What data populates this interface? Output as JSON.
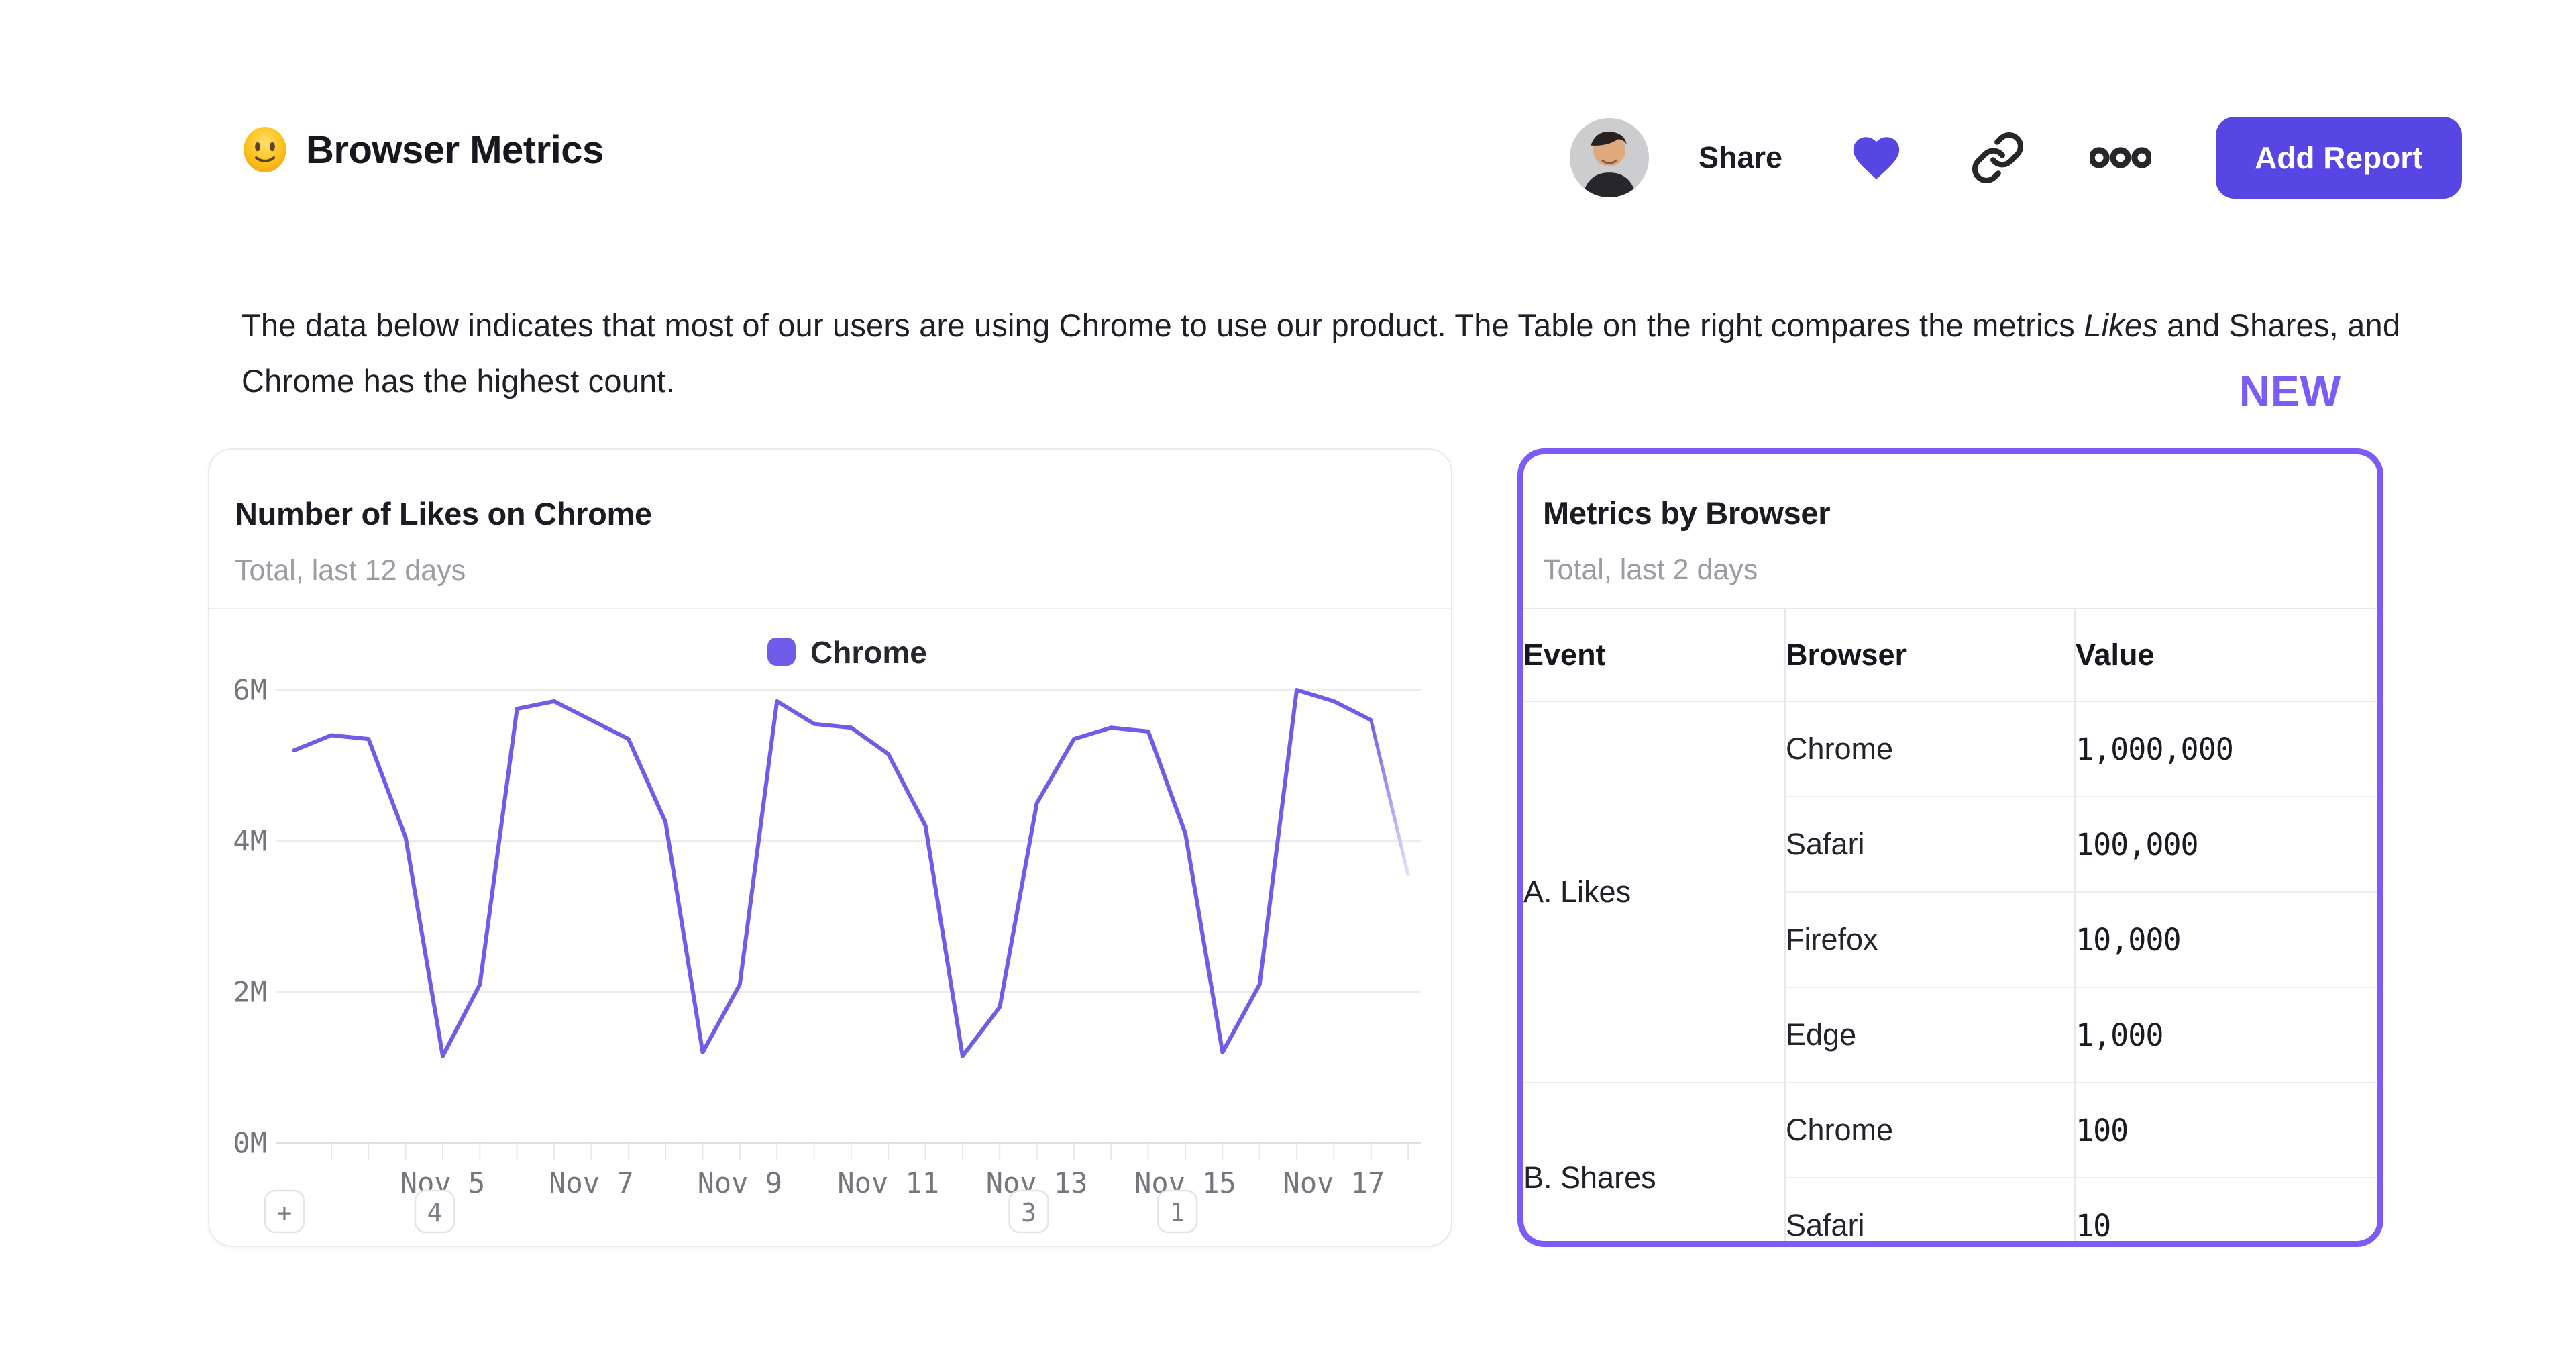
{
  "header": {
    "title": "Browser Metrics",
    "title_emoji": "slightly-smiling-face",
    "share_label": "Share",
    "add_report_label": "Add Report"
  },
  "description": {
    "part1": "The data below indicates that most of our users are using Chrome to use our product. The Table on the right compares the metrics ",
    "italic": "Likes",
    "part2": " and Shares, and Chrome has the highest count."
  },
  "new_badge": "NEW",
  "chart_card": {
    "title": "Number of Likes on Chrome",
    "subtitle": "Total, last 12 days",
    "annotations": [
      {
        "label": "+",
        "day": null
      },
      {
        "label": "4",
        "day": 5
      },
      {
        "label": "3",
        "day": 13
      },
      {
        "label": "1",
        "day": 15
      }
    ]
  },
  "chart_data": {
    "type": "line",
    "title": "Number of Likes on Chrome",
    "subtitle": "Total, last 12 days",
    "x_unit": "date (November, half-day resolution)",
    "ylim": [
      0,
      6
    ],
    "grid": true,
    "legend_position": "top-center",
    "y_ticks": [
      {
        "label": "0M",
        "value": 0
      },
      {
        "label": "2M",
        "value": 2
      },
      {
        "label": "4M",
        "value": 4
      },
      {
        "label": "6M",
        "value": 6
      }
    ],
    "x_ticks": [
      {
        "label": "Nov 5",
        "day": 5
      },
      {
        "label": "Nov 7",
        "day": 7
      },
      {
        "label": "Nov 9",
        "day": 9
      },
      {
        "label": "Nov 11",
        "day": 11
      },
      {
        "label": "Nov 13",
        "day": 13
      },
      {
        "label": "Nov 15",
        "day": 15
      },
      {
        "label": "Nov 17",
        "day": 17
      }
    ],
    "minor_tick_start_day": 3.5,
    "minor_tick_end_day": 18,
    "minor_tick_step": 0.5,
    "series": [
      {
        "name": "Chrome",
        "unit": "M likes",
        "fade_from_day": 17.5,
        "x": [
          3,
          3.5,
          4,
          4.5,
          5,
          5.5,
          6,
          6.5,
          7,
          7.5,
          8,
          8.5,
          9,
          9.5,
          10,
          10.5,
          11,
          11.5,
          12,
          12.5,
          13,
          13.5,
          14,
          14.5,
          15,
          15.5,
          16,
          16.5,
          17,
          17.5,
          18
        ],
        "values": [
          5.2,
          5.4,
          5.35,
          4.05,
          1.15,
          2.1,
          5.75,
          5.85,
          5.6,
          5.35,
          4.25,
          1.2,
          2.1,
          5.85,
          5.55,
          5.5,
          5.15,
          4.2,
          1.15,
          1.8,
          4.5,
          5.35,
          5.5,
          5.45,
          4.1,
          1.2,
          2.1,
          6.0,
          5.85,
          5.6,
          3.55
        ]
      }
    ]
  },
  "table_card": {
    "title": "Metrics by Browser",
    "subtitle": "Total, last 2 days",
    "columns": [
      "Event",
      "Browser",
      "Value"
    ],
    "groups": [
      {
        "event": "A. Likes",
        "rows": [
          {
            "browser": "Chrome",
            "value": "1,000,000"
          },
          {
            "browser": "Safari",
            "value": "100,000"
          },
          {
            "browser": "Firefox",
            "value": "10,000"
          },
          {
            "browser": "Edge",
            "value": "1,000"
          }
        ]
      },
      {
        "event": "B. Shares",
        "rows": [
          {
            "browser": "Chrome",
            "value": "100"
          },
          {
            "browser": "Safari",
            "value": "10"
          }
        ]
      }
    ]
  },
  "colors": {
    "accent_button": "#5646e4",
    "heart": "#5747e2",
    "chart_line": "#6f5ce8",
    "chart_line_fade_to": "#e4e0fa",
    "new_and_border_purple": "#7c5cf6",
    "gridline": "#ececf1",
    "axis_text": "#75757e"
  }
}
